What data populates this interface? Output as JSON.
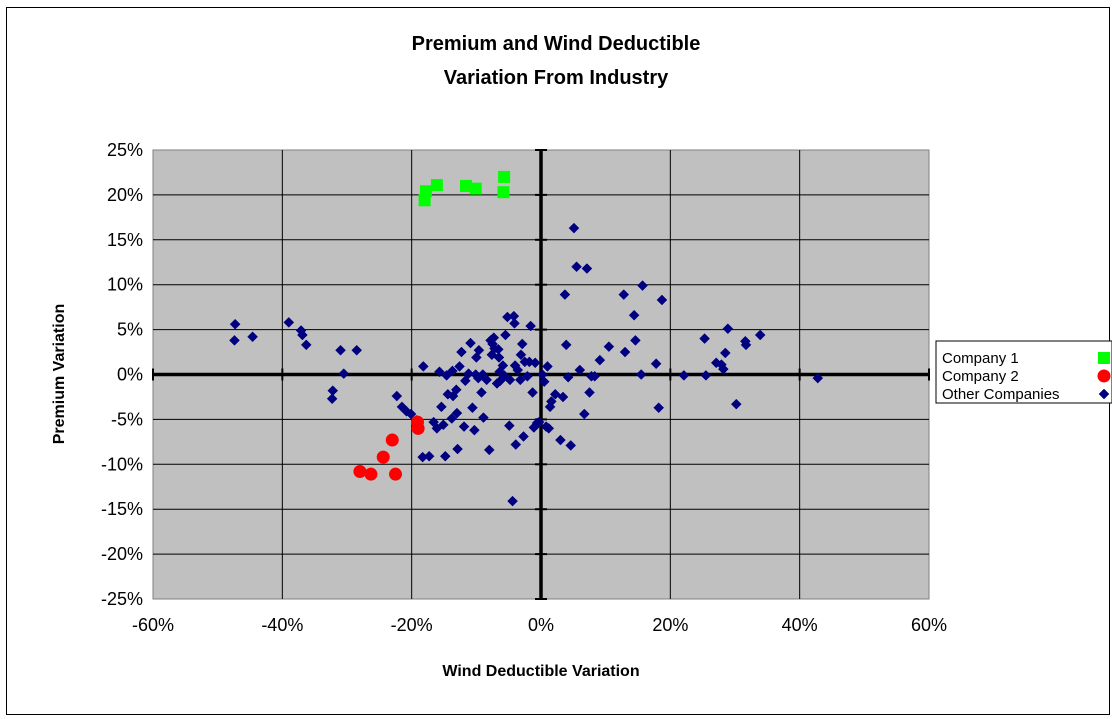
{
  "chart_data": {
    "type": "scatter",
    "title": [
      "Premium and Wind Deductible",
      "Variation From  Industry"
    ],
    "xlabel": "Wind Deductible Variation",
    "ylabel": "Premium Variation",
    "xlim": [
      -60,
      60
    ],
    "ylim": [
      -25,
      25
    ],
    "x_ticks": [
      "-60%",
      "-40%",
      "-20%",
      "0%",
      "20%",
      "40%",
      "60%"
    ],
    "y_ticks": [
      "25%",
      "20%",
      "15%",
      "10%",
      "5%",
      "0%",
      "-5%",
      "-10%",
      "-15%",
      "-20%",
      "-25%"
    ],
    "grid": true,
    "legend_position": "right",
    "plot_background": "#c0c0c0",
    "series": [
      {
        "name": "Company 1",
        "marker": "square",
        "color": "#00ff00",
        "points": [
          [
            -18,
            19.4
          ],
          [
            -17.8,
            20.4
          ],
          [
            -16.1,
            21.1
          ],
          [
            -11.6,
            21
          ],
          [
            -10.1,
            20.7
          ],
          [
            -5.7,
            22
          ],
          [
            -5.8,
            20.3
          ]
        ]
      },
      {
        "name": "Company 2",
        "marker": "circle",
        "color": "#ff0000",
        "points": [
          [
            -28,
            -10.8
          ],
          [
            -26.3,
            -11.1
          ],
          [
            -24.4,
            -9.2
          ],
          [
            -23,
            -7.3
          ],
          [
            -22.5,
            -11.1
          ],
          [
            -19.1,
            -5.3
          ],
          [
            -19,
            -6
          ]
        ]
      },
      {
        "name": "Other Companies",
        "marker": "diamond",
        "color": "#000080",
        "points": [
          [
            -47.3,
            5.6
          ],
          [
            -47.4,
            3.8
          ],
          [
            -44.6,
            4.2
          ],
          [
            -39,
            5.8
          ],
          [
            -37.1,
            4.9
          ],
          [
            -36.9,
            4.4
          ],
          [
            -36.3,
            3.3
          ],
          [
            -32.2,
            -1.8
          ],
          [
            -32.3,
            -2.7
          ],
          [
            -31,
            2.7
          ],
          [
            -30.5,
            0.1
          ],
          [
            -28.5,
            2.7
          ],
          [
            -22.3,
            -2.4
          ],
          [
            -21.5,
            -3.6
          ],
          [
            -20.8,
            -4.1
          ],
          [
            -20.1,
            -4.4
          ],
          [
            -19.3,
            -5.1
          ],
          [
            -18.2,
            0.9
          ],
          [
            -18.3,
            -9.2
          ],
          [
            -17.3,
            -9.1
          ],
          [
            -16.6,
            -5.3
          ],
          [
            -16.1,
            -6.0
          ],
          [
            -15.7,
            0.3
          ],
          [
            -15.4,
            -3.6
          ],
          [
            -15.1,
            -5.6
          ],
          [
            -14.8,
            -9.1
          ],
          [
            -14.6,
            -0.1
          ],
          [
            -14.4,
            -2.2
          ],
          [
            -13.8,
            -4.9
          ],
          [
            -13.7,
            0.4
          ],
          [
            -13.6,
            -2.4
          ],
          [
            -13.1,
            -1.7
          ],
          [
            -13.0,
            -4.3
          ],
          [
            -12.9,
            -8.3
          ],
          [
            -12.6,
            0.9
          ],
          [
            -12.3,
            2.5
          ],
          [
            -11.9,
            -5.8
          ],
          [
            -11.7,
            -0.7
          ],
          [
            -11.2,
            0.1
          ],
          [
            -10.9,
            3.5
          ],
          [
            -10.6,
            -3.7
          ],
          [
            -10.3,
            -6.2
          ],
          [
            -10.1,
            0.0
          ],
          [
            -10.0,
            1.9
          ],
          [
            -9.7,
            -0.4
          ],
          [
            -9.6,
            2.7
          ],
          [
            -9.2,
            -2.0
          ],
          [
            -9.0,
            0.0
          ],
          [
            -8.9,
            -4.8
          ],
          [
            -8.4,
            -0.6
          ],
          [
            -8.0,
            -8.4
          ],
          [
            -7.8,
            3.8
          ],
          [
            -7.6,
            2.2
          ],
          [
            -7.5,
            3.4
          ],
          [
            -7.3,
            4.1
          ],
          [
            -7.2,
            2.9
          ],
          [
            -6.8,
            -1.0
          ],
          [
            -6.6,
            2.8
          ],
          [
            -6.5,
            1.9
          ],
          [
            -6.4,
            0.3
          ],
          [
            -6.3,
            -0.7
          ],
          [
            -5.9,
            1.0
          ],
          [
            -5.7,
            -0.1
          ],
          [
            -5.5,
            4.4
          ],
          [
            -5.2,
            6.4
          ],
          [
            -4.9,
            -5.7
          ],
          [
            -4.8,
            -0.6
          ],
          [
            -4.4,
            -14.1
          ],
          [
            -4.2,
            6.5
          ],
          [
            -4.1,
            5.7
          ],
          [
            -4.0,
            1.0
          ],
          [
            -3.9,
            -7.8
          ],
          [
            -3.6,
            0.5
          ],
          [
            -3.2,
            -0.6
          ],
          [
            -3.1,
            2.2
          ],
          [
            -2.9,
            3.4
          ],
          [
            -2.7,
            -6.9
          ],
          [
            -2.5,
            1.4
          ],
          [
            -2.1,
            -0.2
          ],
          [
            -1.8,
            1.4
          ],
          [
            -1.6,
            5.4
          ],
          [
            -1.3,
            -2.0
          ],
          [
            -1.1,
            -5.9
          ],
          [
            -0.9,
            1.3
          ],
          [
            -0.6,
            -5.4
          ],
          [
            -0.3,
            -5.3
          ],
          [
            0.2,
            0.0
          ],
          [
            0.5,
            -0.8
          ],
          [
            0.8,
            -5.8
          ],
          [
            1.0,
            0.9
          ],
          [
            1.2,
            -6.0
          ],
          [
            1.4,
            -3.6
          ],
          [
            1.6,
            -3.0
          ],
          [
            2.2,
            -2.2
          ],
          [
            3.0,
            -7.3
          ],
          [
            3.4,
            -2.5
          ],
          [
            3.7,
            8.9
          ],
          [
            3.9,
            3.3
          ],
          [
            4.2,
            -0.3
          ],
          [
            4.6,
            -7.9
          ],
          [
            5.1,
            16.3
          ],
          [
            5.5,
            12.0
          ],
          [
            6.0,
            0.5
          ],
          [
            6.7,
            -4.4
          ],
          [
            7.1,
            11.8
          ],
          [
            7.5,
            -2.0
          ],
          [
            7.8,
            -0.2
          ],
          [
            8.3,
            -0.2
          ],
          [
            9.1,
            1.6
          ],
          [
            10.5,
            3.1
          ],
          [
            12.8,
            8.9
          ],
          [
            13.0,
            2.5
          ],
          [
            14.4,
            6.6
          ],
          [
            14.6,
            3.8
          ],
          [
            15.5,
            0.0
          ],
          [
            15.7,
            9.9
          ],
          [
            17.8,
            1.2
          ],
          [
            18.2,
            -3.7
          ],
          [
            18.7,
            8.3
          ],
          [
            22.1,
            -0.1
          ],
          [
            25.3,
            4.0
          ],
          [
            25.5,
            -0.1
          ],
          [
            27.1,
            1.3
          ],
          [
            27.9,
            1.1
          ],
          [
            28.2,
            0.6
          ],
          [
            28.5,
            2.4
          ],
          [
            28.9,
            5.1
          ],
          [
            30.2,
            -3.3
          ],
          [
            31.6,
            3.7
          ],
          [
            31.7,
            3.3
          ],
          [
            33.9,
            4.4
          ],
          [
            42.8,
            -0.4
          ]
        ]
      }
    ]
  }
}
